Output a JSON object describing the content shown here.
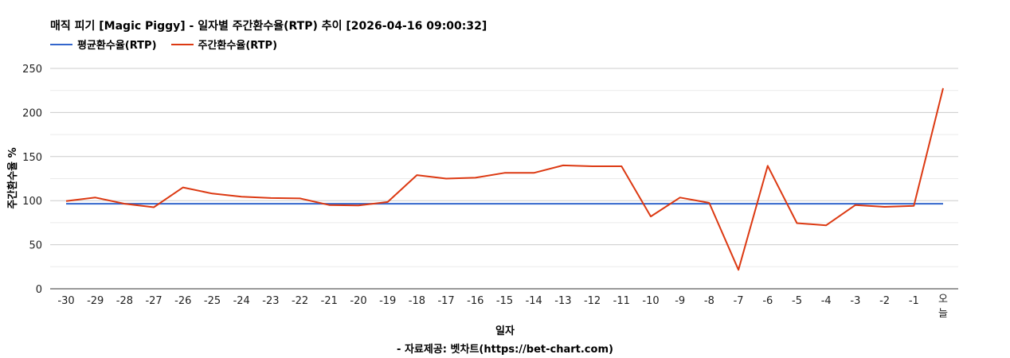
{
  "chart_data": {
    "type": "line",
    "title": "매직 피기 [Magic Piggy] - 일자별 주간환수율(RTP) 추이 [2026-04-16 09:00:32]",
    "xlabel": "일자",
    "ylabel": "주간환수율 %",
    "source": "- 자료제공: 벳차트(https://bet-chart.com)",
    "ylim": [
      0,
      250
    ],
    "yticks": [
      0,
      50,
      100,
      150,
      200,
      250
    ],
    "grid": true,
    "legend_position": "top-left",
    "categories": [
      "-30",
      "-29",
      "-28",
      "-27",
      "-26",
      "-25",
      "-24",
      "-23",
      "-22",
      "-21",
      "-20",
      "-19",
      "-18",
      "-17",
      "-16",
      "-15",
      "-14",
      "-13",
      "-12",
      "-11",
      "-10",
      "-9",
      "-8",
      "-7",
      "-6",
      "-5",
      "-4",
      "-3",
      "-2",
      "-1",
      "오늘"
    ],
    "series": [
      {
        "name": "평균환수율(RTP)",
        "color": "#3366cc",
        "values": [
          96.5,
          96.5,
          96.5,
          96.5,
          96.5,
          96.5,
          96.5,
          96.5,
          96.5,
          96.5,
          96.5,
          96.5,
          96.5,
          96.5,
          96.5,
          96.5,
          96.5,
          96.5,
          96.5,
          96.5,
          96.5,
          96.5,
          96.5,
          96.5,
          96.5,
          96.5,
          96.5,
          96.5,
          96.5,
          96.5,
          96.5
        ]
      },
      {
        "name": "주간환수율(RTP)",
        "color": "#dc3912",
        "values": [
          99.5,
          103.5,
          96.5,
          92.5,
          115,
          108,
          104.5,
          103,
          102.5,
          95,
          94.5,
          98.5,
          129,
          125,
          126,
          131.5,
          131.5,
          140,
          139,
          139,
          82,
          103.5,
          97.5,
          21.5,
          139.5,
          74.5,
          72,
          95,
          93,
          94,
          227.5
        ]
      }
    ]
  }
}
